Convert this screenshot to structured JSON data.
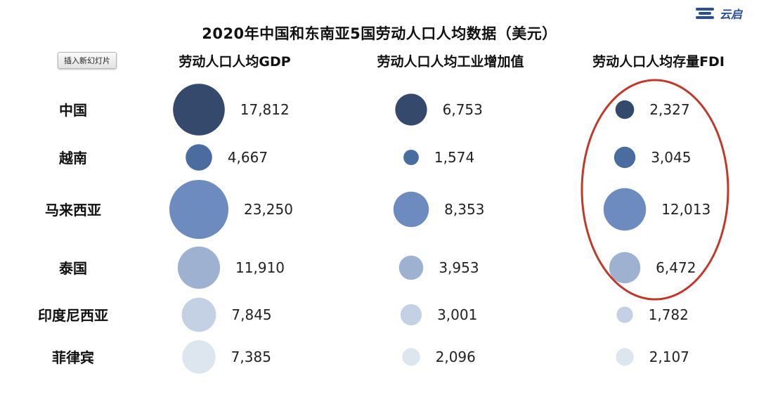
{
  "header": {
    "title": "2020年中国和东南亚5国劳动人口人均数据（美元）",
    "logo_text": "云启",
    "insert_button": "插入新幻灯片"
  },
  "chart_data": {
    "type": "bubble-table",
    "title": "2020年中国和东南亚5国劳动人口人均数据（美元）",
    "countries": [
      "中国",
      "越南",
      "马来西亚",
      "泰国",
      "印度尼西亚",
      "菲律宾"
    ],
    "series": [
      {
        "name": "劳动人口人均GDP",
        "values": [
          17812,
          4667,
          23250,
          11910,
          7845,
          7385
        ]
      },
      {
        "name": "劳动人口人均工业增加值",
        "values": [
          6753,
          1574,
          8353,
          3953,
          3001,
          2096
        ]
      },
      {
        "name": "劳动人口人均存量FDI",
        "values": [
          2327,
          3045,
          12013,
          6472,
          1782,
          2107
        ]
      }
    ],
    "value_labels": [
      [
        "17,812",
        "4,667",
        "23,250",
        "11,910",
        "7,845",
        "7,385"
      ],
      [
        "6,753",
        "1,574",
        "8,353",
        "3,953",
        "3,001",
        "2,096"
      ],
      [
        "2,327",
        "3,045",
        "12,013",
        "6,472",
        "1,782",
        "2,107"
      ]
    ],
    "row_colors": [
      "#34496b",
      "#4b6c9f",
      "#6d8bbf",
      "#9fb1d1",
      "#c4d0e3",
      "#dde5ef"
    ],
    "highlight": {
      "column": 2,
      "rows": [
        0,
        1,
        2,
        3
      ],
      "color": "#c0392b",
      "shape": "ellipse"
    }
  }
}
